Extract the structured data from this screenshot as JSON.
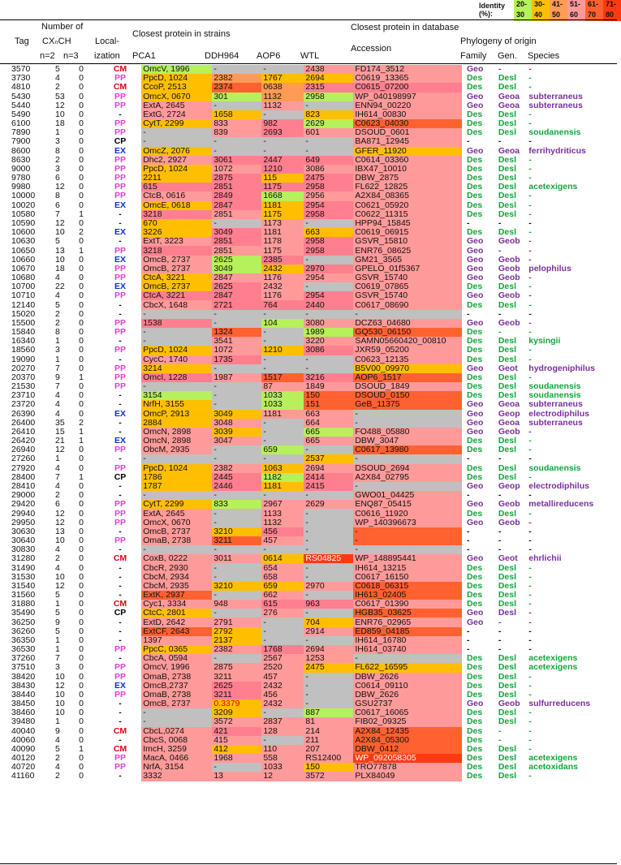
{
  "legend": {
    "label": "Identity (%):",
    "items": [
      {
        "text": "20-30",
        "color": "#b6f05a"
      },
      {
        "text": "30-40",
        "color": "#ffbf00"
      },
      {
        "text": "41-50",
        "color": "#ff9b55"
      },
      {
        "text": "51-60",
        "color": "#ff9a9a"
      },
      {
        "text": "61-70",
        "color": "#ff6130"
      },
      {
        "text": "71-80",
        "color": "#ff3a10"
      }
    ]
  },
  "header": {
    "tag": "Tag",
    "number_of": "Number of",
    "cxch": "CXₙCH",
    "n2": "n=2",
    "n3": "n=3",
    "local": "Local-",
    "ization": "ization",
    "strains": "Closest protein in strains",
    "pca1": "PCA1",
    "ddh964": "DDH964",
    "aop6": "AOP6",
    "wtl": "WTL",
    "database": "Closest protein in database",
    "accession": "Accession",
    "phylogeny": "Phylogeny of origin",
    "family": "Family",
    "gen": "Gen.",
    "species": "Species"
  },
  "rows": [
    [
      "3570",
      "5",
      "0",
      "CM",
      "OmcV, 1996",
      "c1",
      "-",
      "g",
      "-",
      "g",
      "2438",
      "c5",
      "FD174_3512",
      "c5",
      "Geo",
      "-",
      "-"
    ],
    [
      "3730",
      "4",
      "0",
      "PP",
      "PpcD, 1024",
      "c2",
      "2382",
      "c3",
      "1767",
      "c2",
      "2694",
      "c2",
      "C0619_13365",
      "c5",
      "Des",
      "Desl",
      "-"
    ],
    [
      "4810",
      "2",
      "0",
      "CM",
      "CcoP, 2513",
      "c2",
      "2374",
      "c6",
      "0638",
      "c3",
      "2315",
      "c4",
      "C0615_07200",
      "c4",
      "Des",
      "Desl",
      "-"
    ],
    [
      "5430",
      "53",
      "0",
      "PP",
      "OmcX, 0670",
      "c2",
      "301",
      "c1",
      "1132",
      "c3",
      "2958",
      "c1",
      "WP_040198997",
      "c5",
      "Geo",
      "Geoa",
      "subterraneus"
    ],
    [
      "5440",
      "12",
      "0",
      "PP",
      "ExtA, 2645",
      "c5",
      "-",
      "g",
      "1132",
      "c5",
      "-",
      "g",
      "ENN94_00220",
      "c5",
      "Geo",
      "Geoa",
      "subterraneus"
    ],
    [
      "5490",
      "10",
      "0",
      "-",
      "ExtG, 2724",
      "c5",
      "1658",
      "c2",
      "-",
      "g",
      "823",
      "c2",
      "IH614_00830",
      "c5",
      "Des",
      "Desl",
      "-"
    ],
    [
      "6100",
      "18",
      "0",
      "PP",
      "CytT, 2299",
      "c2",
      "833",
      "c5",
      "982",
      "c4",
      "2629",
      "c1",
      "C0623_04030",
      "c6",
      "Des",
      "Desl",
      "-"
    ],
    [
      "7890",
      "1",
      "0",
      "PP",
      "-",
      "g",
      "839",
      "c5",
      "2693",
      "c4",
      "601",
      "c5",
      "DSOUD_0601",
      "c5",
      "Des",
      "Desl",
      "soudanensis"
    ],
    [
      "7900",
      "3",
      "0",
      "CP",
      "-",
      "g",
      "-",
      "g",
      "-",
      "g",
      "-",
      "g",
      "BA871_12945",
      "c5",
      "-",
      "-",
      "-"
    ],
    [
      "8600",
      "8",
      "0",
      "EX",
      "OmcZ, 2076",
      "c2",
      "-",
      "g",
      "-",
      "g",
      "-",
      "g",
      "GFER_11920",
      "c2",
      "Geo",
      "Geoa",
      "ferrihydriticus"
    ],
    [
      "8630",
      "2",
      "0",
      "PP",
      "Dhc2, 2927",
      "c5",
      "3061",
      "c4",
      "2447",
      "c4",
      "649",
      "c4",
      "C0614_03360",
      "c5",
      "Des",
      "Desl",
      "-"
    ],
    [
      "9000",
      "3",
      "0",
      "PP",
      "PpcD, 1024",
      "c2",
      "1072",
      "c5",
      "1210",
      "c4",
      "3086",
      "c5",
      "IBX47_10010",
      "c5",
      "Des",
      "Desl",
      "-"
    ],
    [
      "9780",
      "6",
      "0",
      "PP",
      "2211",
      "c2",
      "2875",
      "c4",
      "115",
      "c2",
      "2475",
      "c4",
      "DBW_2875",
      "c5",
      "Des",
      "Desl",
      "-"
    ],
    [
      "9980",
      "12",
      "0",
      "PP",
      "615",
      "c4",
      "2851",
      "c4",
      "1175",
      "c4",
      "2958",
      "c4",
      "FL622_12825",
      "c5",
      "Des",
      "Desl",
      "acetexigens"
    ],
    [
      "10000",
      "8",
      "0",
      "PP",
      "CtcB, 0616",
      "c5",
      "2849",
      "c4",
      "1668",
      "c1",
      "2956",
      "c5",
      "A2X84_08365",
      "c5",
      "Des",
      "Desl",
      "-"
    ],
    [
      "10020",
      "6",
      "0",
      "EX",
      "OmcE, 0618",
      "c2",
      "2847",
      "c4",
      "1181",
      "c2",
      "2954",
      "c4",
      "C0621_05920",
      "c5",
      "Des",
      "Desl",
      "-"
    ],
    [
      "10580",
      "7",
      "1",
      "-",
      "3218",
      "c4",
      "2851",
      "c5",
      "1175",
      "c2",
      "2958",
      "c4",
      "C0622_11315",
      "c5",
      "Des",
      "Desl",
      "-"
    ],
    [
      "10590",
      "12",
      "0",
      "-",
      "670",
      "c2",
      "-",
      "g",
      "1173",
      "c5",
      "-",
      "g",
      "HPP94_15845",
      "c5",
      "-",
      "-",
      "-"
    ],
    [
      "10600",
      "10",
      "2",
      "EX",
      "3226",
      "c2",
      "3049",
      "c4",
      "1181",
      "c5",
      "663",
      "c2",
      "C0619_06915",
      "c5",
      "Des",
      "Desl",
      "-"
    ],
    [
      "10630",
      "5",
      "0",
      "-",
      "ExtT, 3223",
      "c5",
      "2851",
      "c4",
      "1178",
      "c5",
      "2958",
      "c4",
      "GSVR_15810",
      "c5",
      "Geo",
      "Geob",
      "-"
    ],
    [
      "10650",
      "13",
      "1",
      "PP",
      "3218",
      "c4",
      "2851",
      "c5",
      "1175",
      "c5",
      "2958",
      "c4",
      "ENR76_08625",
      "c5",
      "Geo",
      "-",
      "-"
    ],
    [
      "10660",
      "10",
      "0",
      "EX",
      "OmcB, 2737",
      "c5",
      "2625",
      "c1",
      "2385",
      "c4",
      "-",
      "g",
      "GM21_3565",
      "c5",
      "Geo",
      "Geob",
      "-"
    ],
    [
      "10670",
      "18",
      "0",
      "PP",
      "OmcB, 2737",
      "c5",
      "3049",
      "c1",
      "2432",
      "c2",
      "2970",
      "c4",
      "GPELO_01f5367",
      "c5",
      "Geo",
      "Geob",
      "pelophilus"
    ],
    [
      "10680",
      "4",
      "0",
      "PP",
      "CtcA, 3221",
      "c2",
      "2847",
      "c5",
      "1176",
      "c5",
      "2954",
      "c5",
      "GSVR_15740",
      "c5",
      "Geo",
      "Geob",
      "-"
    ],
    [
      "10700",
      "22",
      "0",
      "EX",
      "OmcB, 2737",
      "c2",
      "2625",
      "c4",
      "2432",
      "c5",
      "-",
      "g",
      "C0619_07865",
      "c5",
      "Des",
      "Desl",
      "-"
    ],
    [
      "10710",
      "4",
      "0",
      "PP",
      "CtcA, 3221",
      "c4",
      "2847",
      "c4",
      "1176",
      "c5",
      "2954",
      "c4",
      "GSVR_15740",
      "c5",
      "Geo",
      "Geob",
      "-"
    ],
    [
      "12140",
      "5",
      "0",
      "-",
      "CbcX, 1648",
      "c5",
      "2721",
      "c4",
      "764",
      "c4",
      "2440",
      "c4",
      "C0617_08690",
      "c5",
      "Des",
      "Desl",
      "-"
    ],
    [
      "15020",
      "2",
      "0",
      "-",
      "-",
      "g",
      "-",
      "g",
      "-",
      "g",
      "-",
      "g",
      "-",
      "g",
      "-",
      "-",
      "-"
    ],
    [
      "15500",
      "2",
      "0",
      "PP",
      "1538",
      "c4",
      "-",
      "g",
      "104",
      "c1",
      "3080",
      "c5",
      "DCZ63_04680",
      "c5",
      "Geo",
      "Geob",
      "-"
    ],
    [
      "15840",
      "8",
      "0",
      "PP",
      "-",
      "g",
      "1324",
      "c6",
      "-",
      "g",
      "1989",
      "c1",
      "GQ530_06150",
      "c6",
      "Des",
      "-",
      "-"
    ],
    [
      "16340",
      "1",
      "0",
      "-",
      "-",
      "g",
      "3541",
      "c5",
      "-",
      "g",
      "3220",
      "c5",
      "SAMN05660420_00810",
      "c5",
      "Des",
      "Desl",
      "kysingii"
    ],
    [
      "18560",
      "3",
      "0",
      "PP",
      "PpcD, 1024",
      "c2",
      "1072",
      "c5",
      "1210",
      "c2",
      "3086",
      "c4",
      "JXR59_05200",
      "c5",
      "Des",
      "Desl",
      "-"
    ],
    [
      "19090",
      "1",
      "0",
      "-",
      "CycC, 1740",
      "c5",
      "1735",
      "c4",
      "-",
      "g",
      "-",
      "g",
      "C0623_12135",
      "c5",
      "Des",
      "Desl",
      "-"
    ],
    [
      "20270",
      "7",
      "0",
      "PP",
      "3214",
      "c2",
      "-",
      "g",
      "-",
      "g",
      "-",
      "g",
      "B5V00_09970",
      "c2",
      "Geo",
      "Geot",
      "hydrogeniphilus"
    ],
    [
      "20370",
      "9",
      "1",
      "PP",
      "OmcI, 1228",
      "c4",
      "1987",
      "c5",
      "1517",
      "c6",
      "3216",
      "c4",
      "AOP6_1517",
      "c6",
      "Des",
      "Desl",
      "-"
    ],
    [
      "21530",
      "7",
      "0",
      "PP",
      "-",
      "g",
      "-",
      "g",
      "87",
      "c5",
      "1849",
      "c5",
      "DSOUD_1849",
      "c5",
      "Des",
      "Desl",
      "soudanensis"
    ],
    [
      "23710",
      "4",
      "0",
      "-",
      "3154",
      "c1",
      "-",
      "g",
      "1033",
      "c1",
      "150",
      "c6",
      "DSOUD_0150",
      "c6",
      "Des",
      "Desl",
      "soudanensis"
    ],
    [
      "23720",
      "4",
      "0",
      "-",
      "NrfH, 3155",
      "c2",
      "-",
      "g",
      "1033",
      "c1",
      "151",
      "c6",
      "GeB_11375",
      "c6",
      "Geo",
      "Geoa",
      "subterraneus"
    ],
    [
      "26390",
      "4",
      "0",
      "EX",
      "OmcP, 2913",
      "c2",
      "3049",
      "c2",
      "1181",
      "c5",
      "663",
      "c5",
      "-",
      "g",
      "Geo",
      "Geop",
      "electrodiphilus"
    ],
    [
      "26400",
      "35",
      "2",
      "-",
      "2884",
      "c2",
      "3048",
      "c5",
      "-",
      "g",
      "664",
      "c5",
      "-",
      "g",
      "Geo",
      "Geoa",
      "subterraneus"
    ],
    [
      "26410",
      "15",
      "1",
      "-",
      "OmcN, 2898",
      "c5",
      "3039",
      "c2",
      "-",
      "g",
      "665",
      "c1",
      "FO488_05880",
      "c5",
      "Geo",
      "Geob",
      "-"
    ],
    [
      "26420",
      "21",
      "1",
      "EX",
      "OmcN, 2898",
      "c5",
      "3047",
      "c5",
      "-",
      "g",
      "665",
      "c5",
      "DBW_3047",
      "c5",
      "Des",
      "Desl",
      "-"
    ],
    [
      "26940",
      "12",
      "0",
      "PP",
      "ObcM, 2935",
      "c5",
      "-",
      "g",
      "659",
      "c1",
      "-",
      "g",
      "C0617_13980",
      "c6",
      "Des",
      "Desl",
      "-"
    ],
    [
      "27260",
      "1",
      "0",
      "-",
      "-",
      "g",
      "-",
      "g",
      "-",
      "g",
      "2537",
      "c2",
      "-",
      "g",
      "-",
      "-",
      "-"
    ],
    [
      "27920",
      "4",
      "0",
      "PP",
      "PpcD, 1024",
      "c2",
      "2382",
      "c5",
      "1063",
      "c2",
      "2694",
      "c5",
      "DSOUD_2694",
      "c5",
      "Des",
      "Desl",
      "soudanensis"
    ],
    [
      "28400",
      "7",
      "1",
      "CP",
      "1786",
      "c2",
      "2445",
      "c4",
      "1182",
      "c1",
      "2414",
      "c4",
      "A2X84_02795",
      "c5",
      "Des",
      "Desl",
      "-"
    ],
    [
      "28410",
      "4",
      "0",
      "-",
      "1787",
      "c2",
      "2446",
      "c4",
      "1181",
      "c2",
      "2415",
      "c4",
      "-",
      "g",
      "Geo",
      "Geop",
      "electrodiphilus"
    ],
    [
      "29000",
      "2",
      "0",
      "-",
      "-",
      "g",
      "-",
      "g",
      "-",
      "g",
      "-",
      "g",
      "GWO01_04425",
      "c5",
      "-",
      "-",
      "-"
    ],
    [
      "29420",
      "6",
      "0",
      "PP",
      "CytT, 2299",
      "c2",
      "833",
      "c1",
      "2967",
      "c5",
      "2629",
      "c5",
      "ENQ87_05415",
      "c5",
      "Geo",
      "Geob",
      "metallireducens"
    ],
    [
      "29940",
      "12",
      "0",
      "PP",
      "ExtA, 2645",
      "c5",
      "-",
      "g",
      "1133",
      "c5",
      "-",
      "g",
      "C0616_11920",
      "c5",
      "Des",
      "Desl",
      "-"
    ],
    [
      "29950",
      "12",
      "0",
      "PP",
      "OmcX, 0670",
      "c5",
      "-",
      "g",
      "1132",
      "c5",
      "-",
      "g",
      "WP_140396673",
      "c5",
      "Geo",
      "Geob",
      "-"
    ],
    [
      "30630",
      "13",
      "0",
      "-",
      "OmcB, 2737",
      "c5",
      "3210",
      "c2",
      "456",
      "c4",
      "-",
      "g",
      "-",
      "c6",
      "-",
      "-",
      "-"
    ],
    [
      "30640",
      "10",
      "0",
      "PP",
      "OmaB, 2738",
      "c5",
      "3211",
      "c6",
      "457",
      "c5",
      "-",
      "g",
      "-",
      "c6",
      "-",
      "-",
      "-"
    ],
    [
      "30830",
      "4",
      "0",
      "-",
      "-",
      "g",
      "-",
      "g",
      "-",
      "g",
      "-",
      "g",
      "-",
      "g",
      "-",
      "-",
      "-"
    ],
    [
      "31280",
      "2",
      "0",
      "CM",
      "CoxB, 0222",
      "c5",
      "3011",
      "c5",
      "0614",
      "c2",
      "RS04825",
      "c7",
      "WP_148895441",
      "c5",
      "Geo",
      "Geot",
      "ehrlichii"
    ],
    [
      "31490",
      "4",
      "0",
      "-",
      "CbcR, 2930",
      "c5",
      "-",
      "g",
      "654",
      "c5",
      "-",
      "g",
      "IH614_13215",
      "c5",
      "Des",
      "Desl",
      "-"
    ],
    [
      "31530",
      "10",
      "0",
      "-",
      "CbcM, 2934",
      "c5",
      "-",
      "g",
      "658",
      "c5",
      "-",
      "g",
      "C0617_16150",
      "c5",
      "Des",
      "Desl",
      "-"
    ],
    [
      "31540",
      "12",
      "0",
      "-",
      "CbcM, 2935",
      "c5",
      "3210",
      "c2",
      "659",
      "c2",
      "2970",
      "c5",
      "C0618_06315",
      "c6",
      "Des",
      "Desl",
      "-"
    ],
    [
      "31560",
      "5",
      "0",
      "-",
      "ExtK, 2937",
      "c6",
      "-",
      "g",
      "662",
      "c5",
      "-",
      "g",
      "IH613_02405",
      "c6",
      "Des",
      "Desl",
      "-"
    ],
    [
      "31880",
      "1",
      "0",
      "CM",
      "Cyc1, 3334",
      "c5",
      "948",
      "c5",
      "615",
      "c4",
      "963",
      "c4",
      "C0617_01390",
      "c5",
      "Des",
      "Desl",
      "-"
    ],
    [
      "35490",
      "5",
      "0",
      "CP",
      "CtcC, 2801",
      "c2",
      "-",
      "g",
      "276",
      "c5",
      "-",
      "g",
      "HGB35_03625",
      "c6",
      "Geo",
      "Desl",
      "-"
    ],
    [
      "36250",
      "9",
      "0",
      "-",
      "ExtD, 2642",
      "c5",
      "2791",
      "c5",
      "-",
      "g",
      "704",
      "c2",
      "ENR76_02965",
      "c5",
      "Geo",
      "-",
      "-"
    ],
    [
      "36260",
      "5",
      "0",
      "-",
      "ExtCF, 2643",
      "c6",
      "2792",
      "c2",
      "-",
      "g",
      "2914",
      "c5",
      "ED859_04185",
      "c6",
      "-",
      "-",
      "-"
    ],
    [
      "36350",
      "1",
      "0",
      "-",
      "1397",
      "c5",
      "2137",
      "c2",
      "-",
      "g",
      "-",
      "g",
      "IH614_16780",
      "c5",
      "-",
      "-",
      "-"
    ],
    [
      "36530",
      "1",
      "0",
      "PP",
      "PpcC, 0365",
      "c2",
      "2382",
      "c5",
      "1768",
      "c4",
      "2694",
      "c5",
      "IH614_03740",
      "c5",
      "-",
      "-",
      "-"
    ],
    [
      "37260",
      "7",
      "0",
      "-",
      "CbcA, 0594",
      "c5",
      "-",
      "g",
      "2567",
      "c5",
      "1253",
      "c5",
      "-",
      "g",
      "Des",
      "Desl",
      "acetexigens"
    ],
    [
      "37510",
      "3",
      "0",
      "PP",
      "OmcV, 1996",
      "c5",
      "2875",
      "c5",
      "2520",
      "c5",
      "2475",
      "c2",
      "FL622_16595",
      "c2",
      "Des",
      "Desl",
      "acetexigens"
    ],
    [
      "38420",
      "10",
      "0",
      "PP",
      "OmaB, 2738",
      "c5",
      "3211",
      "c5",
      "457",
      "c5",
      "-",
      "g",
      "DBW_2626",
      "c5",
      "Des",
      "Desl",
      "-"
    ],
    [
      "38430",
      "12",
      "0",
      "EX",
      "OmcB,2737",
      "c5",
      "2625",
      "c4",
      "2432",
      "c5",
      "-",
      "g",
      "C0614_09110",
      "c5",
      "Des",
      "Desl",
      "-"
    ],
    [
      "38440",
      "10",
      "0",
      "PP",
      "OmaB, 2738",
      "c5",
      "3211",
      "c4",
      "456",
      "c5",
      "-",
      "g",
      "DBW_2626",
      "c5",
      "Des",
      "Desl",
      "-"
    ],
    [
      "38450",
      "10",
      "0",
      "-",
      "OmcB, 2737",
      "c5",
      "0.3379",
      "c2",
      "2432",
      "c5",
      "-",
      "g",
      "GSU2737",
      "c5",
      "Geo",
      "Geob",
      "sulfurreducens"
    ],
    [
      "38460",
      "10",
      "0",
      "-",
      "-",
      "g",
      "3209",
      "c2",
      "-",
      "g",
      "887",
      "c1",
      "C0617_16065",
      "c5",
      "Des",
      "Desl",
      "-"
    ],
    [
      "39480",
      "1",
      "0",
      "-",
      "-",
      "g",
      "3572",
      "c5",
      "2837",
      "c5",
      "81",
      "c5",
      "FIB02_09325",
      "c5",
      "Des",
      "Desl",
      "-"
    ],
    [
      "40040",
      "9",
      "0",
      "CM",
      "CbcL,0274",
      "c5",
      "421",
      "c4",
      "128",
      "c5",
      "214",
      "c5",
      "A2X84_12435",
      "c6",
      "Des",
      "-",
      "-"
    ],
    [
      "40060",
      "4",
      "0",
      "-",
      "CbcS, 0068",
      "c5",
      "415",
      "c5",
      "-",
      "g",
      "211",
      "c5",
      "A2X84_05300",
      "c6",
      "Des",
      "-",
      "-"
    ],
    [
      "40090",
      "5",
      "1",
      "CM",
      "ImcH, 3259",
      "c5",
      "412",
      "c2",
      "110",
      "c5",
      "207",
      "c5",
      "DBW_0412",
      "c6",
      "Des",
      "Desl",
      "-"
    ],
    [
      "40120",
      "2",
      "0",
      "PP",
      "MacA, 0466",
      "c5",
      "1968",
      "c5",
      "558",
      "c5",
      "RS12400",
      "c5",
      "WP_092058305",
      "c7",
      "Des",
      "Desl",
      "acetexigens"
    ],
    [
      "40720",
      "4",
      "0",
      "PP",
      "NrfA, 3154",
      "c5",
      "-",
      "g",
      "1033",
      "c5",
      "150",
      "c2",
      "TRO77878",
      "c5",
      "Des",
      "Desl",
      "acetoxidans"
    ],
    [
      "41160",
      "2",
      "0",
      "-",
      "3332",
      "c5",
      "13",
      "c5",
      "12",
      "c5",
      "3572",
      "c5",
      "PLX84049",
      "c5",
      "Des",
      "Desl",
      "-"
    ]
  ]
}
